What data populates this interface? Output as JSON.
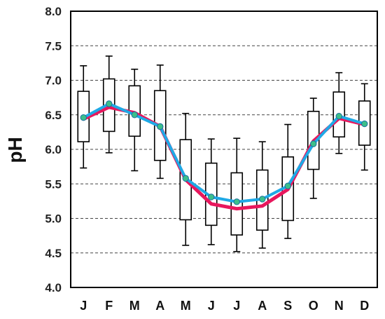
{
  "chart_data": {
    "type": "box",
    "title": "",
    "xlabel": "",
    "ylabel": "pH",
    "ylim": [
      4.0,
      8.0
    ],
    "yticks": [
      "4.0",
      "4.5",
      "5.0",
      "5.5",
      "6.0",
      "6.5",
      "7.0",
      "7.5",
      "8.0"
    ],
    "grid": "horizontal dashed",
    "categories": [
      "J",
      "F",
      "M",
      "A",
      "M",
      "J",
      "J",
      "A",
      "S",
      "O",
      "N",
      "D"
    ],
    "boxes": [
      {
        "min": 5.73,
        "q1": 6.11,
        "q3": 6.84,
        "max": 7.21
      },
      {
        "min": 5.95,
        "q1": 6.26,
        "q3": 7.02,
        "max": 7.35
      },
      {
        "min": 5.69,
        "q1": 6.19,
        "q3": 6.92,
        "max": 7.16
      },
      {
        "min": 5.58,
        "q1": 5.84,
        "q3": 6.85,
        "max": 7.22
      },
      {
        "min": 4.61,
        "q1": 4.98,
        "q3": 6.14,
        "max": 6.52
      },
      {
        "min": 4.62,
        "q1": 4.9,
        "q3": 5.8,
        "max": 6.15
      },
      {
        "min": 4.52,
        "q1": 4.76,
        "q3": 5.66,
        "max": 6.16
      },
      {
        "min": 4.57,
        "q1": 4.83,
        "q3": 5.7,
        "max": 6.11
      },
      {
        "min": 4.71,
        "q1": 4.97,
        "q3": 5.89,
        "max": 6.36
      },
      {
        "min": 5.29,
        "q1": 5.71,
        "q3": 6.55,
        "max": 6.74
      },
      {
        "min": 5.94,
        "q1": 6.18,
        "q3": 6.83,
        "max": 7.11
      },
      {
        "min": 5.7,
        "q1": 6.06,
        "q3": 6.7,
        "max": 6.95
      }
    ],
    "series": [
      {
        "values": [
          6.44,
          6.61,
          6.53,
          6.33,
          5.56,
          5.21,
          5.14,
          5.18,
          5.42,
          6.12,
          6.45,
          6.36
        ],
        "color": "#e8175d"
      },
      {
        "values": [
          6.46,
          6.66,
          6.5,
          6.33,
          5.58,
          5.31,
          5.24,
          5.28,
          5.47,
          6.08,
          6.48,
          6.37
        ],
        "color": "#1fa9e6"
      }
    ],
    "marker_color": "#3cbf8a"
  }
}
